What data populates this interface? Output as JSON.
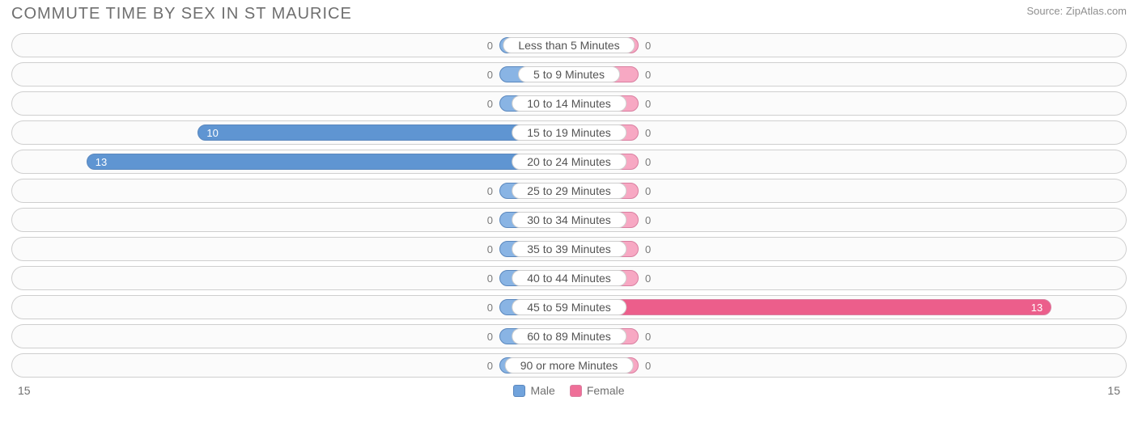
{
  "header": {
    "title": "COMMUTE TIME BY SEX IN ST MAURICE",
    "source": "Source: ZipAtlas.com"
  },
  "chart": {
    "type": "diverging-bar",
    "axis_max": 15,
    "min_bar_pct": 12.5,
    "left_axis_label": "15",
    "right_axis_label": "15",
    "colors": {
      "male_fill": "#89b4e4",
      "male_fill_nonzero": "#5f95d2",
      "male_border": "#5a87bd",
      "female_fill": "#f7a8c3",
      "female_fill_nonzero": "#ec5e8b",
      "female_border": "#d97fa0",
      "track_border": "#cfcfcf",
      "track_bg": "#fbfbfb",
      "value_text": "#ffffff",
      "ext_text": "#7a7a7a",
      "label_text": "#545454"
    },
    "legend": [
      {
        "label": "Male",
        "fill": "#71a3dc",
        "border": "#5a87bd"
      },
      {
        "label": "Female",
        "fill": "#ef6f98",
        "border": "#d97fa0"
      }
    ],
    "rows": [
      {
        "category": "Less than 5 Minutes",
        "male": 0,
        "female": 0
      },
      {
        "category": "5 to 9 Minutes",
        "male": 0,
        "female": 0
      },
      {
        "category": "10 to 14 Minutes",
        "male": 0,
        "female": 0
      },
      {
        "category": "15 to 19 Minutes",
        "male": 10,
        "female": 0
      },
      {
        "category": "20 to 24 Minutes",
        "male": 13,
        "female": 0
      },
      {
        "category": "25 to 29 Minutes",
        "male": 0,
        "female": 0
      },
      {
        "category": "30 to 34 Minutes",
        "male": 0,
        "female": 0
      },
      {
        "category": "35 to 39 Minutes",
        "male": 0,
        "female": 0
      },
      {
        "category": "40 to 44 Minutes",
        "male": 0,
        "female": 0
      },
      {
        "category": "45 to 59 Minutes",
        "male": 0,
        "female": 13
      },
      {
        "category": "60 to 89 Minutes",
        "male": 0,
        "female": 0
      },
      {
        "category": "90 or more Minutes",
        "male": 0,
        "female": 0
      }
    ]
  }
}
